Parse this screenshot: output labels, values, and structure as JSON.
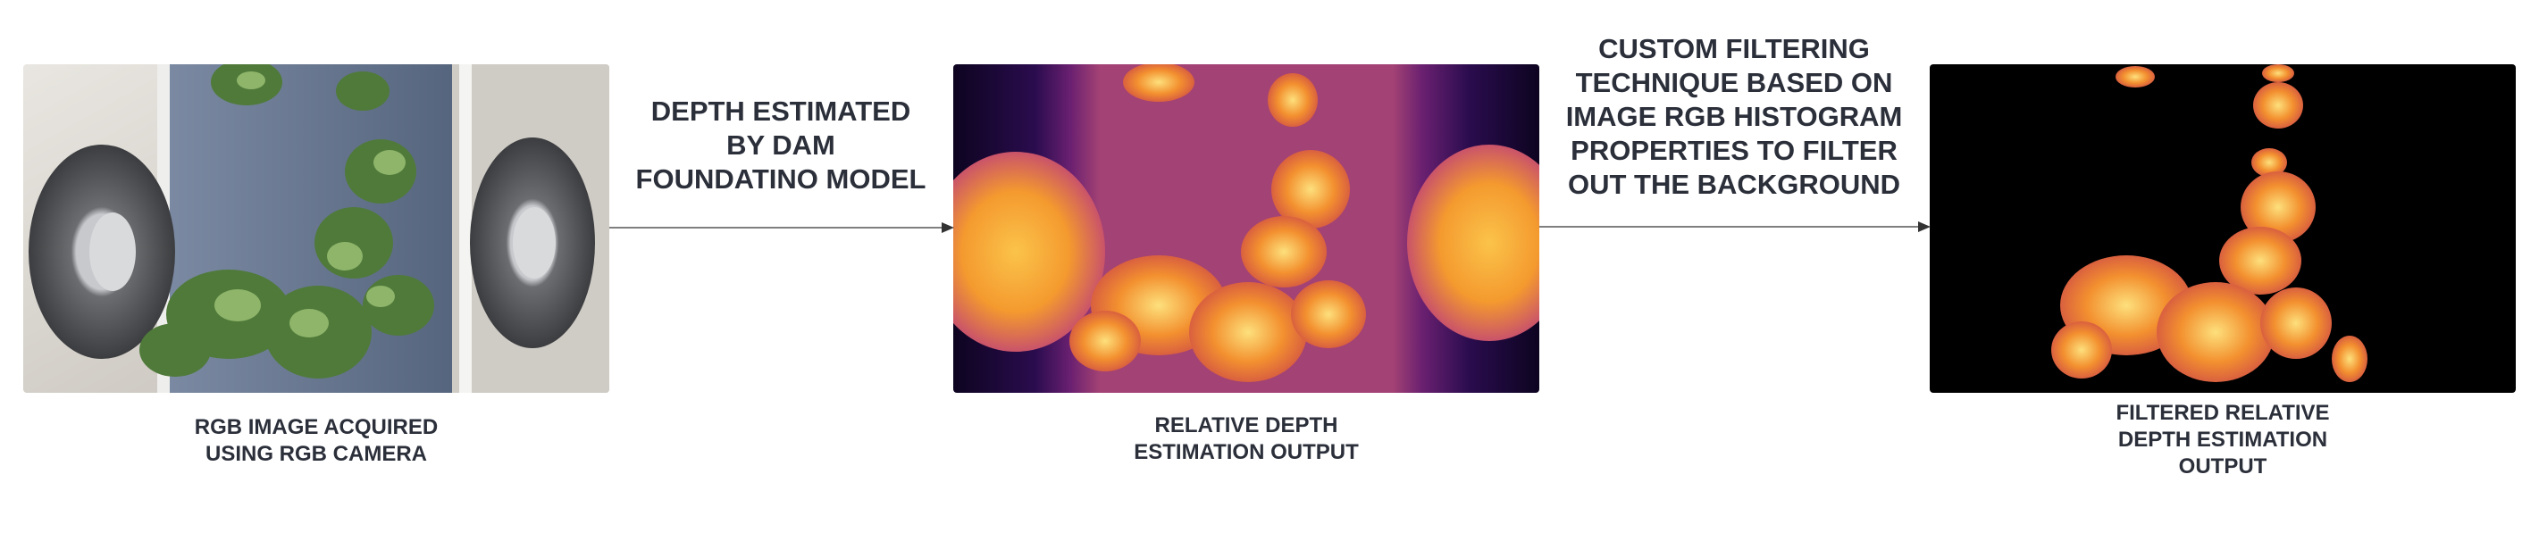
{
  "panels": {
    "rgb": {
      "caption": "RGB IMAGE ACQUIRED\nUSING RGB CAMERA"
    },
    "depth": {
      "caption": "RELATIVE DEPTH\nESTIMATION OUTPUT"
    },
    "filtered": {
      "caption": "FILTERED RELATIVE\nDEPTH ESTIMATION\nOUTPUT"
    }
  },
  "arrows": {
    "first": {
      "label": "DEPTH ESTIMATED\nBY DAM\nFOUNDATINO MODEL"
    },
    "second": {
      "label": "CUSTOM FILTERING\nTECHNIQUE BASED ON\nIMAGE RGB HISTOGRAM\nPROPERTIES TO FILTER\nOUT THE BACKGROUND"
    }
  },
  "colors": {
    "text": "#2b2f3a",
    "arrow": "#555555",
    "depth_far": "#0d0420",
    "depth_mid": "#8a2d6e",
    "depth_near": "#f5a236",
    "filtered_bg": "#000000"
  }
}
